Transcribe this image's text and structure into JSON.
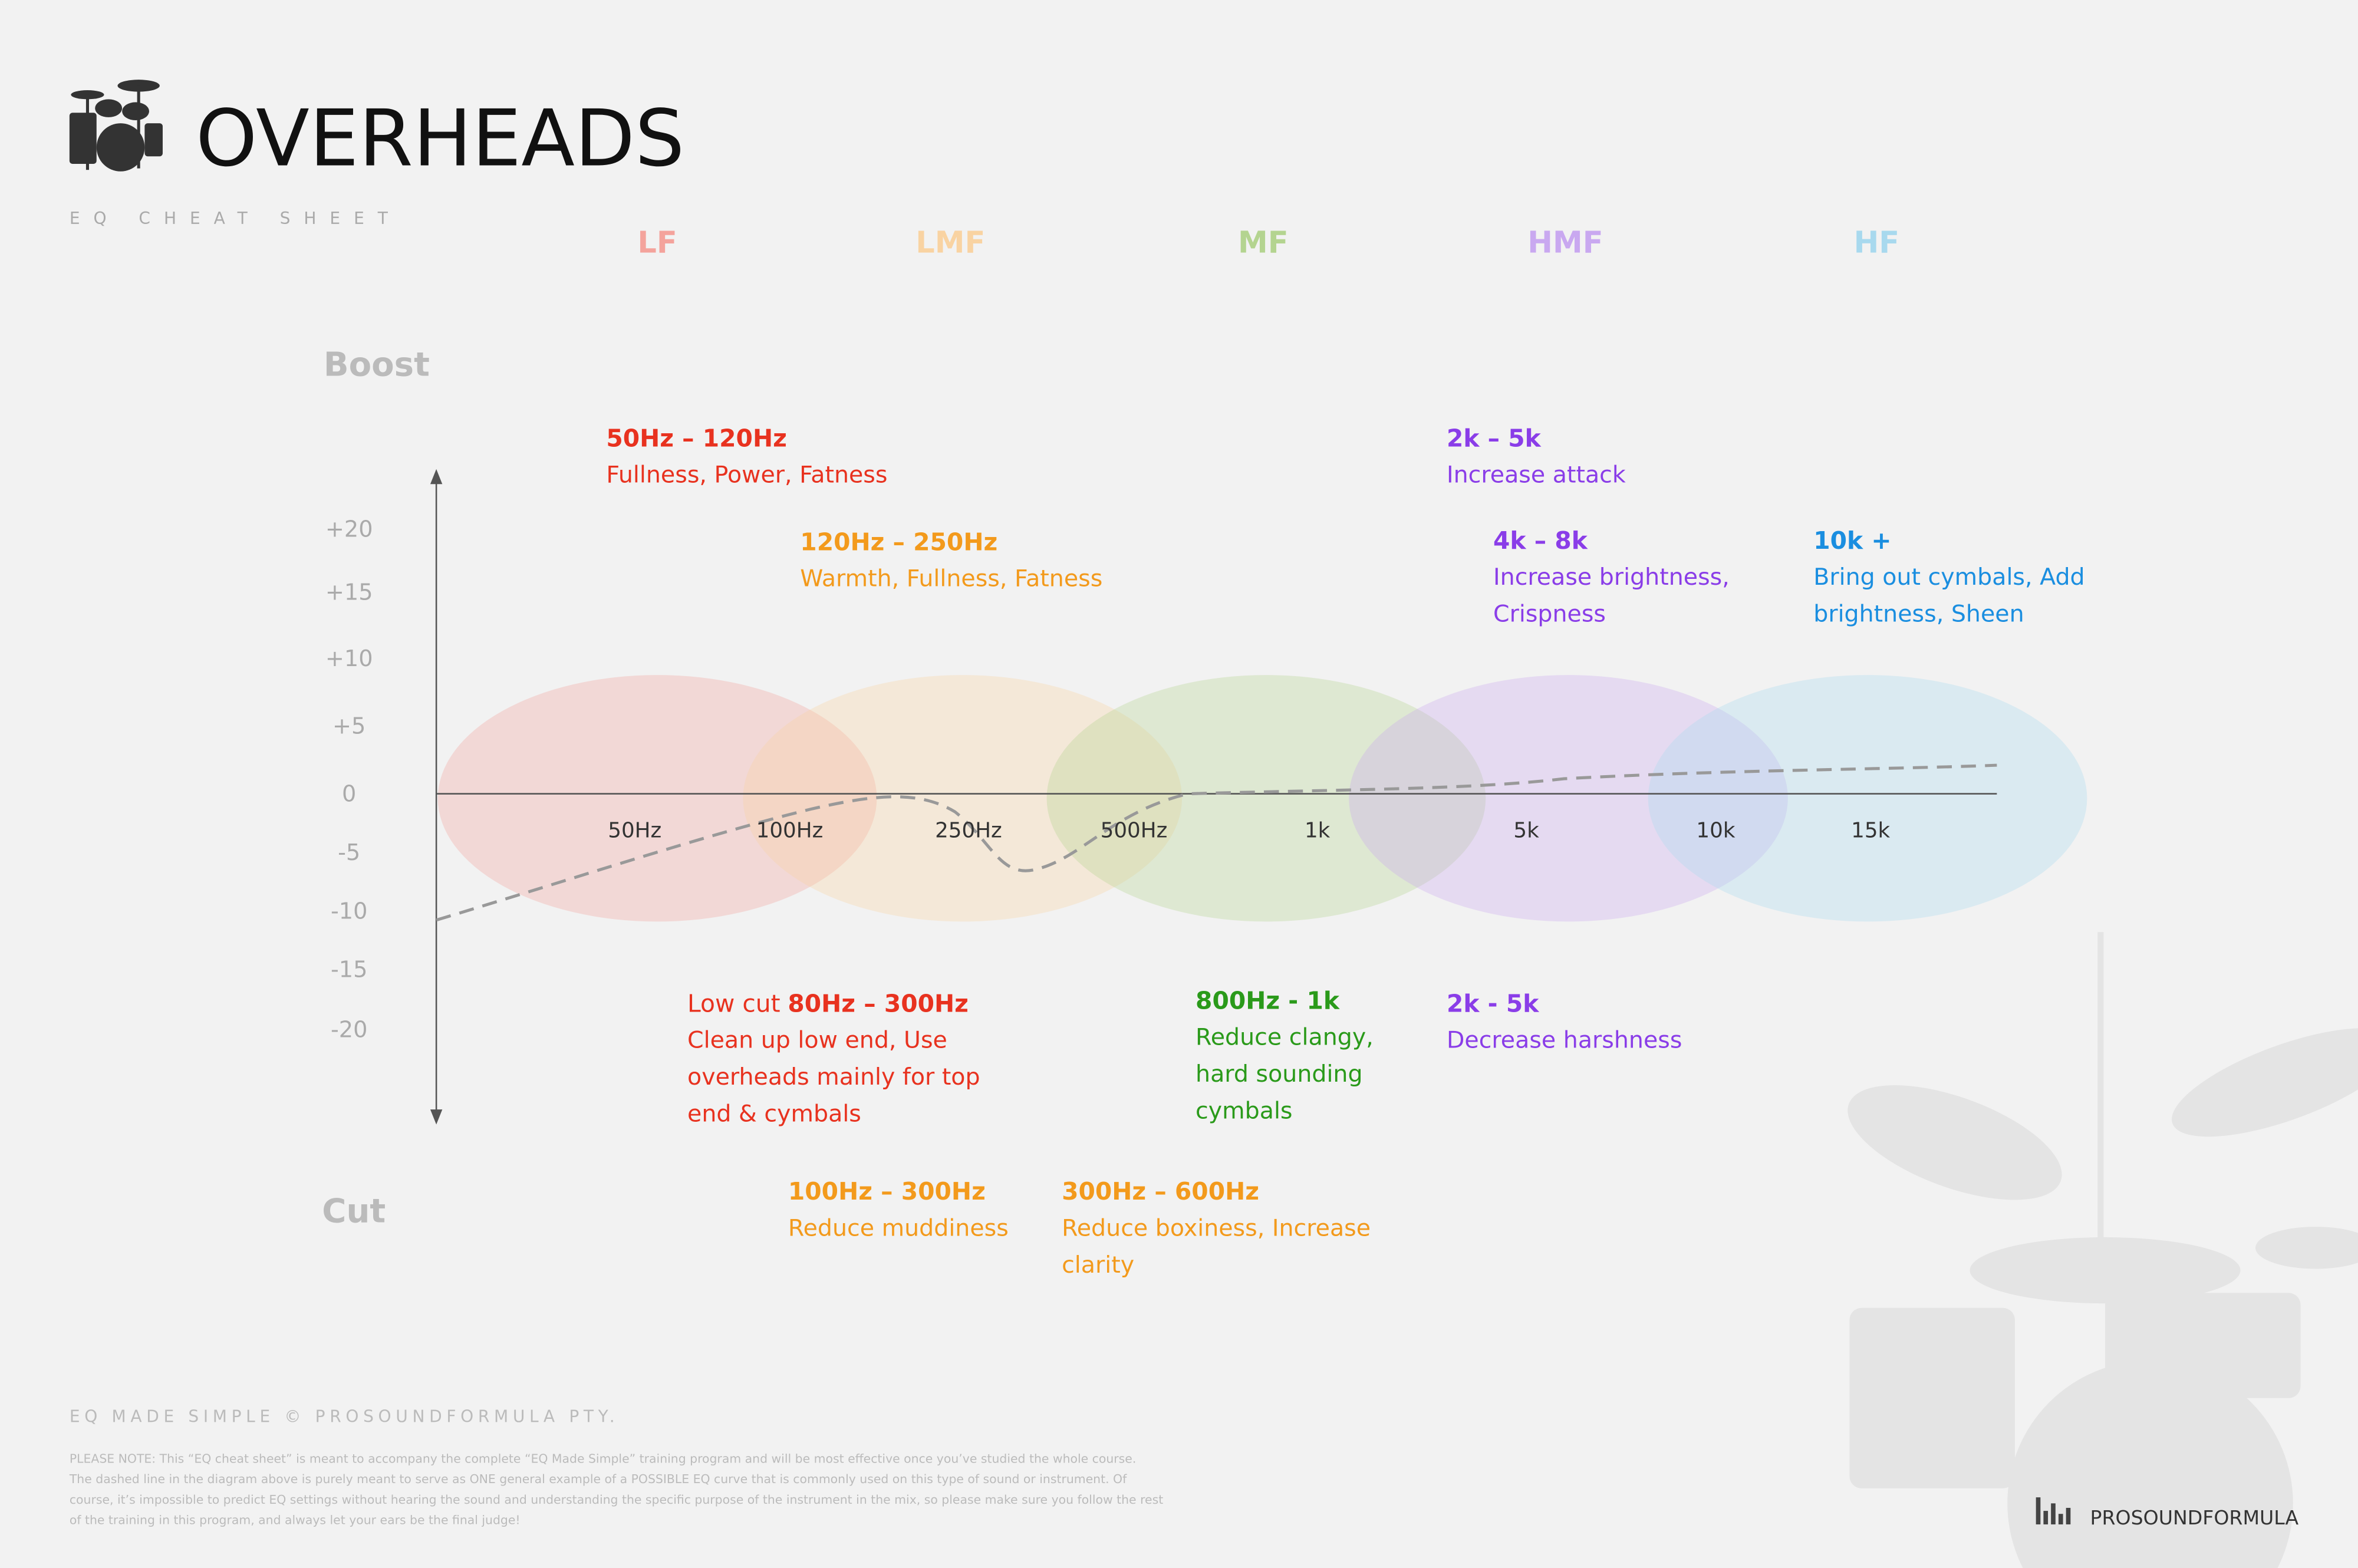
{
  "header": {
    "title": "OVERHEADS",
    "subtitle": "EQ CHEAT SHEET"
  },
  "bands": [
    {
      "label": "LF",
      "color": "#f4a39c"
    },
    {
      "label": "LMF",
      "color": "#f9d3a2"
    },
    {
      "label": "MF",
      "color": "#b4d490"
    },
    {
      "label": "HMF",
      "color": "#c9a8f0"
    },
    {
      "label": "HF",
      "color": "#a8d9ee"
    }
  ],
  "axis": {
    "boost": "Boost",
    "cut": "Cut",
    "levels": [
      "+20",
      "+15",
      "+10",
      "+5",
      "0",
      "-5",
      "-10",
      "-15",
      "-20"
    ],
    "frequencies": [
      "50Hz",
      "100Hz",
      "250Hz",
      "500Hz",
      "1k",
      "5k",
      "10k",
      "15k"
    ]
  },
  "notes": [
    {
      "range": "50Hz – 120Hz",
      "lines": [
        "Fullness, Power, Fatness"
      ],
      "color": "#e8321f"
    },
    {
      "range": "120Hz – 250Hz",
      "lines": [
        "Warmth, Fullness, Fatness"
      ],
      "color": "#f39a1c"
    },
    {
      "range": "2k – 5k",
      "lines": [
        "Increase attack"
      ],
      "color": "#8a3de8"
    },
    {
      "range": "4k – 8k",
      "lines": [
        "Increase brightness,",
        "Crispness"
      ],
      "color": "#8a3de8"
    },
    {
      "range": "10k +",
      "lines": [
        "Bring out cymbals, Add",
        "brightness, Sheen"
      ],
      "color": "#1a8ee0"
    },
    {
      "prefix": "Low cut",
      "range": "80Hz – 300Hz",
      "lines": [
        "Clean up low end, Use",
        "overheads mainly for top",
        "end & cymbals"
      ],
      "color": "#e8321f"
    },
    {
      "range": "800Hz - 1k",
      "lines": [
        "Reduce clangy,",
        "hard sounding",
        "cymbals"
      ],
      "color": "#2a9a1a"
    },
    {
      "range": "2k - 5k",
      "lines": [
        "Decrease harshness"
      ],
      "color": "#8a3de8"
    },
    {
      "range": "100Hz – 300Hz",
      "lines": [
        "Reduce muddiness"
      ],
      "color": "#f39a1c"
    },
    {
      "range": "300Hz – 600Hz",
      "lines": [
        "Reduce boxiness, Increase",
        "clarity"
      ],
      "color": "#f39a1c"
    }
  ],
  "footer": {
    "credit": "EQ MADE SIMPLE  © PROSOUNDFORMULA PTY.",
    "disclaimer": [
      "PLEASE NOTE: This “EQ cheat sheet” is meant to accompany the complete “EQ Made Simple” training program and will be most effective once you’ve studied the whole course.",
      "The dashed line in the diagram above is purely meant to serve as ONE general example of a POSSIBLE EQ curve that is commonly used on this type of sound or instrument. Of",
      "course, it’s impossible to predict EQ settings without hearing the sound and understanding the specific purpose of the instrument in the mix, so please make sure you follow the rest",
      "of the training in this program, and always let your ears be the final judge!"
    ],
    "brand": "PROSOUNDFORMULA"
  }
}
